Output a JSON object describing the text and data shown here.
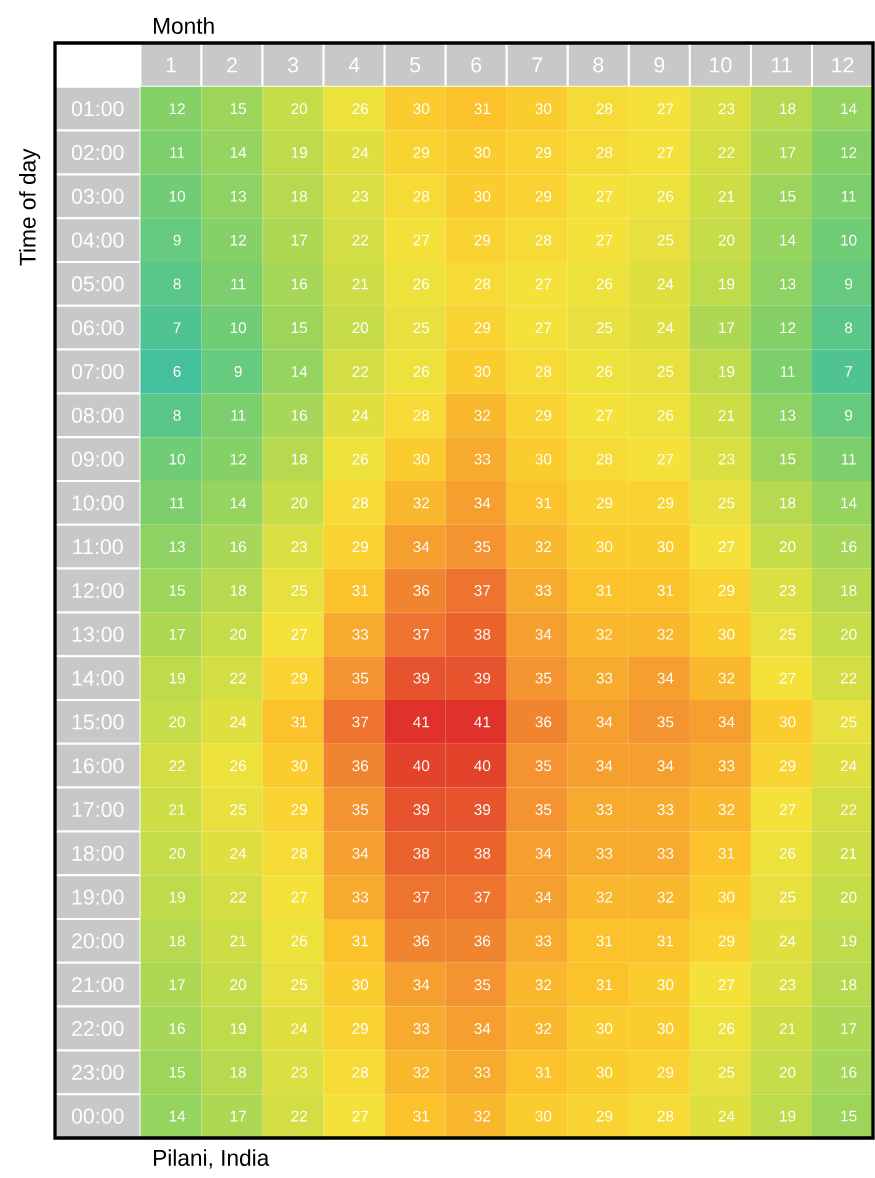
{
  "chart_data": {
    "type": "heatmap",
    "xlabel": "Month",
    "ylabel": "Time of day",
    "annotations": [
      "Pilani, India"
    ],
    "data_labels": true,
    "categories": [
      "1",
      "2",
      "3",
      "4",
      "5",
      "6",
      "7",
      "8",
      "9",
      "10",
      "11",
      "12"
    ],
    "y_categories": [
      "01:00",
      "02:00",
      "03:00",
      "04:00",
      "05:00",
      "06:00",
      "07:00",
      "08:00",
      "09:00",
      "10:00",
      "11:00",
      "12:00",
      "13:00",
      "14:00",
      "15:00",
      "16:00",
      "17:00",
      "18:00",
      "19:00",
      "20:00",
      "21:00",
      "22:00",
      "23:00",
      "00:00"
    ],
    "cells": [
      [
        12,
        15,
        20,
        26,
        30,
        31,
        30,
        28,
        27,
        23,
        18,
        14
      ],
      [
        11,
        14,
        19,
        24,
        29,
        30,
        29,
        28,
        27,
        22,
        17,
        12
      ],
      [
        10,
        13,
        18,
        23,
        28,
        30,
        29,
        27,
        26,
        21,
        15,
        11
      ],
      [
        9,
        12,
        17,
        22,
        27,
        29,
        28,
        27,
        25,
        20,
        14,
        10
      ],
      [
        8,
        11,
        16,
        21,
        26,
        28,
        27,
        26,
        24,
        19,
        13,
        9
      ],
      [
        7,
        10,
        15,
        20,
        25,
        29,
        27,
        25,
        24,
        17,
        12,
        8
      ],
      [
        6,
        9,
        14,
        22,
        26,
        30,
        28,
        26,
        25,
        19,
        11,
        7
      ],
      [
        8,
        11,
        16,
        24,
        28,
        32,
        29,
        27,
        26,
        21,
        13,
        9
      ],
      [
        10,
        12,
        18,
        26,
        30,
        33,
        30,
        28,
        27,
        23,
        15,
        11
      ],
      [
        11,
        14,
        20,
        28,
        32,
        34,
        31,
        29,
        29,
        25,
        18,
        14
      ],
      [
        13,
        16,
        23,
        29,
        34,
        35,
        32,
        30,
        30,
        27,
        20,
        16
      ],
      [
        15,
        18,
        25,
        31,
        36,
        37,
        33,
        31,
        31,
        29,
        23,
        18
      ],
      [
        17,
        20,
        27,
        33,
        37,
        38,
        34,
        32,
        32,
        30,
        25,
        20
      ],
      [
        19,
        22,
        29,
        35,
        39,
        39,
        35,
        33,
        34,
        32,
        27,
        22
      ],
      [
        20,
        24,
        31,
        37,
        41,
        41,
        36,
        34,
        35,
        34,
        30,
        25
      ],
      [
        22,
        26,
        30,
        36,
        40,
        40,
        35,
        34,
        34,
        33,
        29,
        24
      ],
      [
        21,
        25,
        29,
        35,
        39,
        39,
        35,
        33,
        33,
        32,
        27,
        22
      ],
      [
        20,
        24,
        28,
        34,
        38,
        38,
        34,
        33,
        33,
        31,
        26,
        21
      ],
      [
        19,
        22,
        27,
        33,
        37,
        37,
        34,
        32,
        32,
        30,
        25,
        20
      ],
      [
        18,
        21,
        26,
        31,
        36,
        36,
        33,
        31,
        31,
        29,
        24,
        19
      ],
      [
        17,
        20,
        25,
        30,
        34,
        35,
        32,
        31,
        30,
        27,
        23,
        18
      ],
      [
        16,
        19,
        24,
        29,
        33,
        34,
        32,
        30,
        30,
        26,
        21,
        17
      ],
      [
        15,
        18,
        23,
        28,
        32,
        33,
        31,
        30,
        29,
        25,
        20,
        16
      ],
      [
        14,
        17,
        22,
        27,
        31,
        32,
        30,
        29,
        28,
        24,
        19,
        15
      ]
    ]
  }
}
